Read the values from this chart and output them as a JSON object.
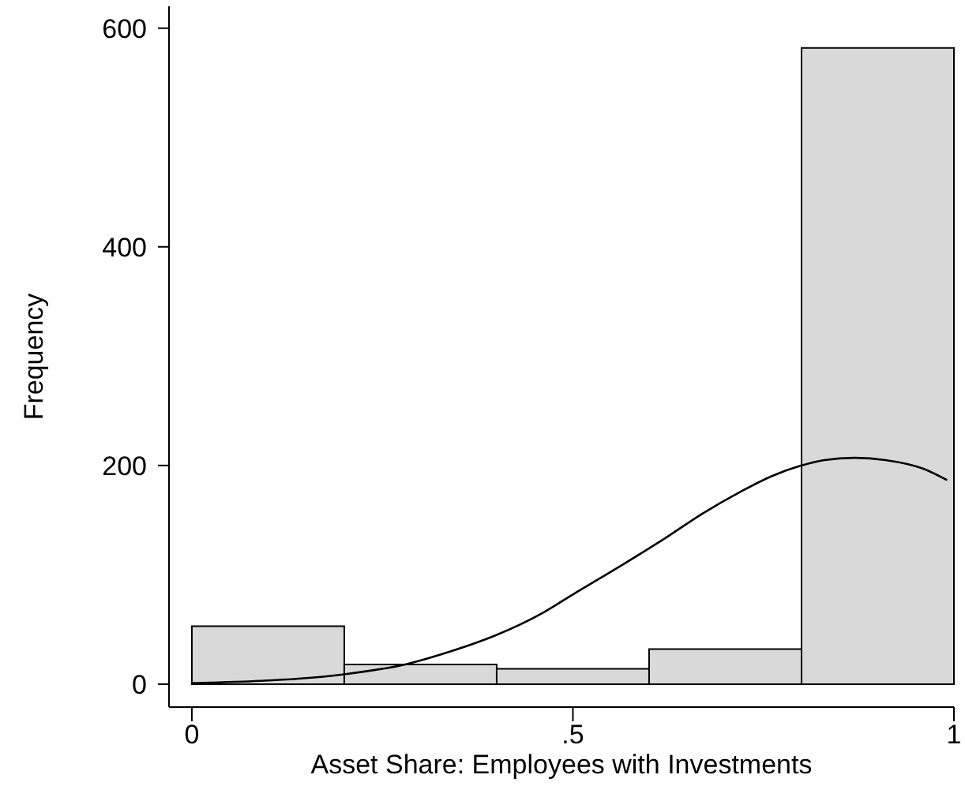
{
  "chart_data": {
    "type": "histogram",
    "xlabel": "Asset Share: Employees with Investments",
    "ylabel": "Frequency",
    "bins": [
      0,
      0.2,
      0.4,
      0.6,
      0.8,
      1
    ],
    "series": [
      {
        "color": "#d9d9d9",
        "values": [
          53,
          18,
          14,
          32,
          582
        ]
      },
      {
        "type": "line",
        "color": "#000000",
        "x": [
          0,
          0.09,
          0.14,
          0.2,
          0.28,
          0.34,
          0.4,
          0.46,
          0.5,
          0.56,
          0.62,
          0.67,
          0.72,
          0.76,
          0.8,
          0.83,
          0.87,
          0.91,
          0.96,
          0.99
        ],
        "values": [
          1,
          3,
          5,
          9,
          18,
          30,
          45,
          65,
          82,
          107,
          133,
          156,
          176,
          190,
          200,
          205,
          207,
          205,
          197,
          187
        ]
      }
    ],
    "xlim": [
      -0.03,
      1
    ],
    "xticks": [
      0,
      {
        "value": 0.5,
        "label": ".5"
      },
      1
    ],
    "ylim": [
      -21,
      620
    ],
    "yticks": [
      0,
      200,
      400,
      600
    ]
  }
}
